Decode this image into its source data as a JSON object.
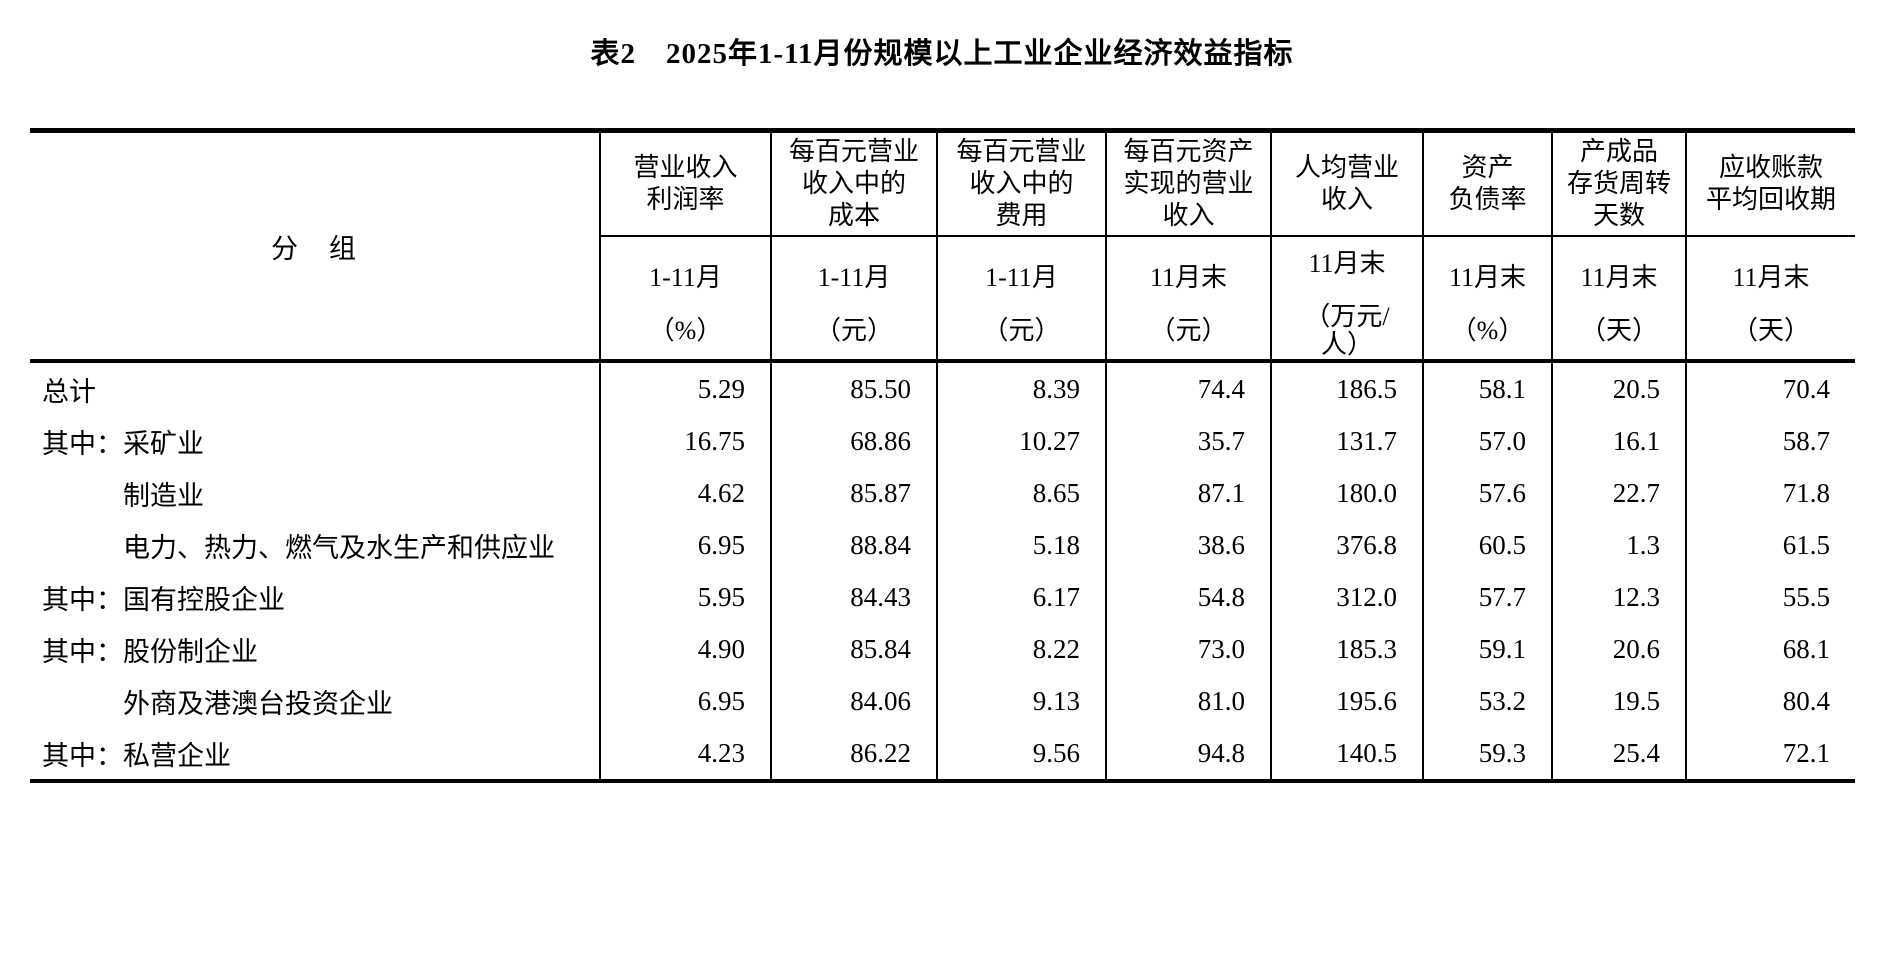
{
  "title": "表2　2025年1-11月份规模以上工业企业经济效益指标",
  "table": {
    "group_header": "分　组",
    "columns": [
      {
        "name": "营业收入\n利润率",
        "period": "1-11月",
        "unit": "（%）"
      },
      {
        "name": "每百元营业\n收入中的\n成本",
        "period": "1-11月",
        "unit": "（元）"
      },
      {
        "name": "每百元营业\n收入中的\n费用",
        "period": "1-11月",
        "unit": "（元）"
      },
      {
        "name": "每百元资产\n实现的营业\n收入",
        "period": "11月末",
        "unit": "（元）"
      },
      {
        "name": "人均营业\n收入",
        "period": "11月末",
        "unit": "（万元/\n人）"
      },
      {
        "name": "资产\n负债率",
        "period": "11月末",
        "unit": "（%）"
      },
      {
        "name": "产成品\n存货周转\n天数",
        "period": "11月末",
        "unit": "（天）"
      },
      {
        "name": "应收账款\n平均回收期",
        "period": "11月末",
        "unit": "（天）"
      }
    ],
    "rows": [
      {
        "label": "总计",
        "indent": false,
        "values": [
          "5.29",
          "85.50",
          "8.39",
          "74.4",
          "186.5",
          "58.1",
          "20.5",
          "70.4"
        ]
      },
      {
        "label": "其中：采矿业",
        "indent": false,
        "values": [
          "16.75",
          "68.86",
          "10.27",
          "35.7",
          "131.7",
          "57.0",
          "16.1",
          "58.7"
        ]
      },
      {
        "label": "制造业",
        "indent": true,
        "values": [
          "4.62",
          "85.87",
          "8.65",
          "87.1",
          "180.0",
          "57.6",
          "22.7",
          "71.8"
        ]
      },
      {
        "label": "电力、热力、燃气及水生产和供应业",
        "indent": true,
        "values": [
          "6.95",
          "88.84",
          "5.18",
          "38.6",
          "376.8",
          "60.5",
          "1.3",
          "61.5"
        ]
      },
      {
        "label": "其中：国有控股企业",
        "indent": false,
        "values": [
          "5.95",
          "84.43",
          "6.17",
          "54.8",
          "312.0",
          "57.7",
          "12.3",
          "55.5"
        ]
      },
      {
        "label": "其中：股份制企业",
        "indent": false,
        "values": [
          "4.90",
          "85.84",
          "8.22",
          "73.0",
          "185.3",
          "59.1",
          "20.6",
          "68.1"
        ]
      },
      {
        "label": "外商及港澳台投资企业",
        "indent": true,
        "values": [
          "6.95",
          "84.06",
          "9.13",
          "81.0",
          "195.6",
          "53.2",
          "19.5",
          "80.4"
        ]
      },
      {
        "label": "其中：私营企业",
        "indent": false,
        "values": [
          "4.23",
          "86.22",
          "9.56",
          "94.8",
          "140.5",
          "59.3",
          "25.4",
          "72.1"
        ]
      }
    ]
  },
  "colors": {
    "text": "#000000",
    "border": "#000000",
    "background": "#ffffff"
  },
  "chart_data": {
    "type": "table",
    "title": "表2　2025年1-11月份规模以上工业企业经济效益指标",
    "row_header": "分　组",
    "column_headers": [
      "营业收入利润率 1-11月（%）",
      "每百元营业收入中的成本 1-11月（元）",
      "每百元营业收入中的费用 1-11月（元）",
      "每百元资产实现的营业收入 11月末（元）",
      "人均营业收入 11月末（万元/人）",
      "资产负债率 11月末（%）",
      "产成品存货周转天数 11月末（天）",
      "应收账款平均回收期 11月末（天）"
    ],
    "rows": [
      {
        "group": "总计",
        "values": [
          5.29,
          85.5,
          8.39,
          74.4,
          186.5,
          58.1,
          20.5,
          70.4
        ]
      },
      {
        "group": "其中：采矿业",
        "values": [
          16.75,
          68.86,
          10.27,
          35.7,
          131.7,
          57.0,
          16.1,
          58.7
        ]
      },
      {
        "group": "制造业",
        "values": [
          4.62,
          85.87,
          8.65,
          87.1,
          180.0,
          57.6,
          22.7,
          71.8
        ]
      },
      {
        "group": "电力、热力、燃气及水生产和供应业",
        "values": [
          6.95,
          88.84,
          5.18,
          38.6,
          376.8,
          60.5,
          1.3,
          61.5
        ]
      },
      {
        "group": "其中：国有控股企业",
        "values": [
          5.95,
          84.43,
          6.17,
          54.8,
          312.0,
          57.7,
          12.3,
          55.5
        ]
      },
      {
        "group": "其中：股份制企业",
        "values": [
          4.9,
          85.84,
          8.22,
          73.0,
          185.3,
          59.1,
          20.6,
          68.1
        ]
      },
      {
        "group": "外商及港澳台投资企业",
        "values": [
          6.95,
          84.06,
          9.13,
          81.0,
          195.6,
          53.2,
          19.5,
          80.4
        ]
      },
      {
        "group": "其中：私营企业",
        "values": [
          4.23,
          86.22,
          9.56,
          94.8,
          140.5,
          59.3,
          25.4,
          72.1
        ]
      }
    ]
  }
}
